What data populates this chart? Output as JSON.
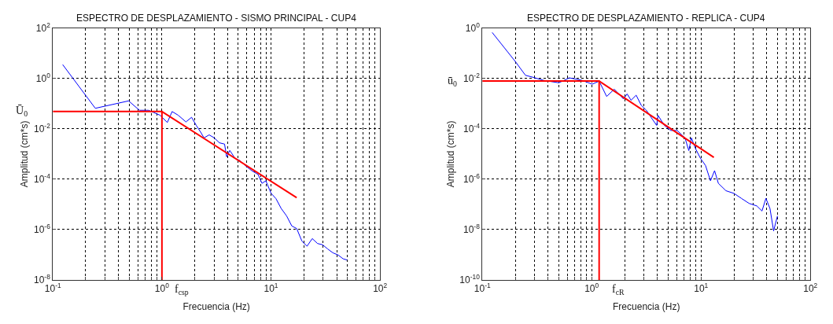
{
  "chart_data": [
    {
      "type": "line",
      "title": "ESPECTRO DE DESPLAZAMIENTO - SISMO PRINCIPAL - CUP4",
      "xlabel": "Frecuencia (Hz)",
      "ylabel": "Amplitud (cm*s)",
      "log": "xy",
      "grid": true,
      "marker": "none",
      "line_style": "solid",
      "xlim": [
        0.1,
        100
      ],
      "ylim": [
        1e-08,
        100
      ],
      "xticks": [
        {
          "value": 0.1,
          "label": "10$^{-1}$"
        },
        {
          "value": 0.2,
          "label": null
        },
        {
          "value": 0.3,
          "label": null
        },
        {
          "value": 0.4,
          "label": null
        },
        {
          "value": 0.5,
          "label": null
        },
        {
          "value": 0.6,
          "label": null
        },
        {
          "value": 0.7,
          "label": null
        },
        {
          "value": 0.8,
          "label": null
        },
        {
          "value": 0.9,
          "label": null
        },
        {
          "value": 1,
          "label": "10$^{0}$"
        },
        {
          "value": 2,
          "label": null
        },
        {
          "value": 3,
          "label": null
        },
        {
          "value": 4,
          "label": null
        },
        {
          "value": 5,
          "label": null
        },
        {
          "value": 6,
          "label": null
        },
        {
          "value": 7,
          "label": null
        },
        {
          "value": 8,
          "label": null
        },
        {
          "value": 9,
          "label": null
        },
        {
          "value": 10,
          "label": "10$^{1}$"
        },
        {
          "value": 20,
          "label": null
        },
        {
          "value": 30,
          "label": null
        },
        {
          "value": 40,
          "label": null
        },
        {
          "value": 50,
          "label": null
        },
        {
          "value": 60,
          "label": null
        },
        {
          "value": 70,
          "label": null
        },
        {
          "value": 80,
          "label": null
        },
        {
          "value": 90,
          "label": null
        },
        {
          "value": 100,
          "label": "10$^{2}$"
        }
      ],
      "yticks": [
        {
          "value": 1e-08,
          "label": "10$^{-8}$"
        },
        {
          "value": 1e-06,
          "label": "10$^{-6}$"
        },
        {
          "value": 0.0001,
          "label": "10$^{-4}$"
        },
        {
          "value": 0.01,
          "label": "10$^{-2}$"
        },
        {
          "value": 1,
          "label": "10$^{0}$"
        },
        {
          "value": 100,
          "label": "10$^{2}$"
        }
      ],
      "series": [
        {
          "color": "#0000ff",
          "x": [
            0.123,
            0.245,
            0.495,
            0.622,
            0.753,
            0.962,
            1.12,
            1.24,
            1.41,
            1.66,
            1.87,
            2.06,
            2.29,
            2.43,
            2.71,
            3.02,
            3.37,
            3.75,
            3.92,
            4.19,
            4.67,
            5.2,
            5.81,
            6.65,
            7.62,
            8.26,
            8.97,
            10.0,
            11.1,
            12.4,
            13.9,
            15.5,
            17.2,
            19.2,
            21.4,
            23.9,
            26.7,
            29.7,
            33.1,
            36.9,
            41.2,
            45.9,
            49.8
          ],
          "values": [
            3.6,
            0.066,
            0.13,
            0.055,
            0.055,
            0.035,
            0.018,
            0.049,
            0.035,
            0.019,
            0.029,
            0.014,
            0.0069,
            0.0044,
            0.0058,
            0.0044,
            0.0028,
            0.0025,
            0.00078,
            0.0014,
            0.00069,
            0.00055,
            0.00035,
            0.00022,
            0.000155,
            6.9e-05,
            8.7e-05,
            2.8e-05,
            1.7e-05,
            6.9e-06,
            3.5e-06,
            1.4e-06,
            1.1e-06,
            3.5e-07,
            2.2e-07,
            4.4e-07,
            2.8e-07,
            2.5e-07,
            1.7e-07,
            1.2e-07,
            9.8e-08,
            6.9e-08,
            6.2e-08
          ]
        },
        {
          "color": "#ff0000",
          "x": [
            0.1,
            1.0,
            1.0,
            1.0,
            17.2
          ],
          "values": [
            0.049,
            0.049,
            1e-08,
            0.049,
            1.86e-05
          ]
        }
      ],
      "annotations": [
        "Ū$_{0}$",
        "f$_{csp}$"
      ]
    },
    {
      "type": "line",
      "title": "ESPECTRO DE DESPLAZAMIENTO - REPLICA - CUP4",
      "xlabel": "Frecuencia (Hz)",
      "ylabel": "Amplitud (cm*s)",
      "log": "xy",
      "grid": true,
      "marker": "none",
      "line_style": "solid",
      "xlim": [
        0.1,
        100
      ],
      "ylim": [
        1e-10,
        1
      ],
      "xticks": [
        {
          "value": 0.1,
          "label": "10$^{-1}$"
        },
        {
          "value": 0.2,
          "label": null
        },
        {
          "value": 0.3,
          "label": null
        },
        {
          "value": 0.4,
          "label": null
        },
        {
          "value": 0.5,
          "label": null
        },
        {
          "value": 0.6,
          "label": null
        },
        {
          "value": 0.7,
          "label": null
        },
        {
          "value": 0.8,
          "label": null
        },
        {
          "value": 0.9,
          "label": null
        },
        {
          "value": 1,
          "label": "10$^{0}$"
        },
        {
          "value": 2,
          "label": null
        },
        {
          "value": 3,
          "label": null
        },
        {
          "value": 4,
          "label": null
        },
        {
          "value": 5,
          "label": null
        },
        {
          "value": 6,
          "label": null
        },
        {
          "value": 7,
          "label": null
        },
        {
          "value": 8,
          "label": null
        },
        {
          "value": 9,
          "label": null
        },
        {
          "value": 10,
          "label": "10$^{1}$"
        },
        {
          "value": 20,
          "label": null
        },
        {
          "value": 30,
          "label": null
        },
        {
          "value": 40,
          "label": null
        },
        {
          "value": 50,
          "label": null
        },
        {
          "value": 60,
          "label": null
        },
        {
          "value": 70,
          "label": null
        },
        {
          "value": 80,
          "label": null
        },
        {
          "value": 90,
          "label": null
        },
        {
          "value": 100,
          "label": "10$^{2}$"
        }
      ],
      "yticks": [
        {
          "value": 1e-10,
          "label": "10$^{-10}$"
        },
        {
          "value": 1e-08,
          "label": "10$^{-8}$"
        },
        {
          "value": 1e-06,
          "label": "10$^{-6}$"
        },
        {
          "value": 0.0001,
          "label": "10$^{-4}$"
        },
        {
          "value": 0.01,
          "label": "10$^{-2}$"
        },
        {
          "value": 1,
          "label": "10$^{0}$"
        }
      ],
      "series": [
        {
          "color": "#0000ff",
          "x": [
            0.123,
            0.2,
            0.248,
            0.292,
            0.363,
            0.501,
            0.624,
            0.817,
            1.01,
            1.17,
            1.37,
            1.61,
            1.95,
            2.11,
            2.29,
            2.55,
            2.84,
            3.16,
            3.52,
            3.93,
            4.04,
            4.62,
            5.28,
            6.05,
            7.13,
            7.73,
            8.17,
            8.85,
            9.86,
            11.0,
            12.2,
            13.3,
            14.4,
            16.9,
            20.0,
            23.4,
            27.5,
            32.4,
            36.1,
            39.2,
            42.7,
            46.1,
            50.0
          ],
          "values": [
            0.68,
            0.048,
            0.0135,
            0.0112,
            0.0085,
            0.0068,
            0.0107,
            0.0085,
            0.006,
            0.0079,
            0.00195,
            0.0038,
            0.00155,
            0.00245,
            0.00138,
            0.00219,
            0.00087,
            0.00055,
            0.000275,
            0.000138,
            0.000347,
            0.000138,
            8.7e-05,
            8.7e-05,
            4.4e-05,
            1.38e-05,
            4.4e-05,
            1.74e-05,
            6.9e-06,
            3.5e-06,
            8.7e-07,
            2.2e-06,
            6.9e-07,
            3.5e-07,
            2.75e-07,
            1.74e-07,
            1.1e-07,
            8.7e-08,
            5.5e-08,
            1.74e-07,
            6.9e-08,
            8.9e-09,
            3.5e-08
          ]
        },
        {
          "color": "#ff0000",
          "x": [
            0.1,
            1.17,
            1.17,
            1.17,
            13.1
          ],
          "values": [
            0.008,
            0.008,
            1e-10,
            0.008,
            7.4e-06
          ]
        }
      ],
      "annotations": [
        "ū$_{0}$",
        "f$_{cR}$"
      ]
    }
  ]
}
